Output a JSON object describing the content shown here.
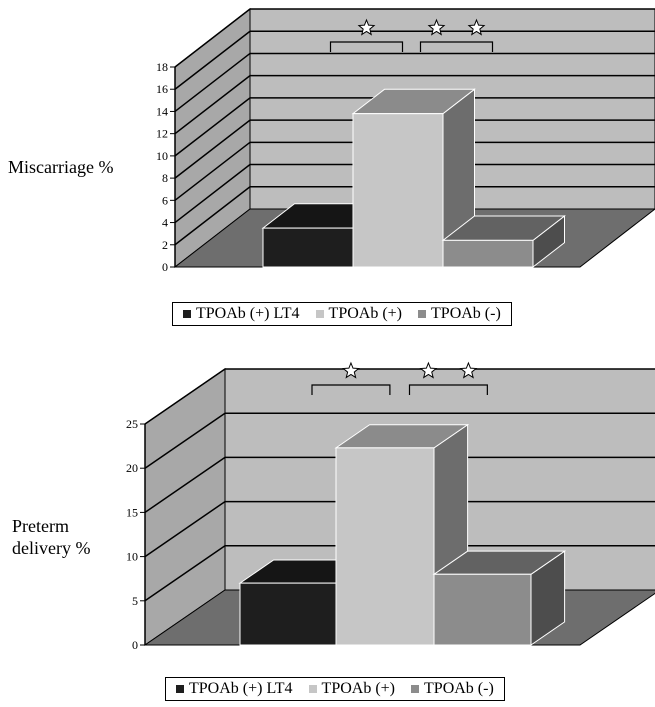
{
  "colors": {
    "series_lt4": "#1e1e1e",
    "series_pos": "#c6c6c6",
    "series_neg": "#8c8c8c",
    "back_wall": "#bdbdbd",
    "side_wall": "#a8a8a8",
    "floor": "#6e6e6e"
  },
  "legend": {
    "lt4": "TPOAb (+) LT4",
    "pos": "TPOAb (+)",
    "neg": "TPOAb (-)"
  },
  "charts": [
    {
      "ylabel_lines": [
        "Miscarriage %"
      ]
    },
    {
      "ylabel_lines": [
        "Preterm",
        "delivery %"
      ]
    }
  ],
  "chart_data": [
    {
      "type": "bar",
      "ylabel": "Miscarriage %",
      "ylim": [
        0,
        18
      ],
      "yticks": [
        0,
        2,
        4,
        6,
        8,
        10,
        12,
        14,
        16,
        18
      ],
      "categories": [
        "TPOAb (+) LT4",
        "TPOAb (+)",
        "TPOAb (-)"
      ],
      "values": [
        3.5,
        13.8,
        2.4
      ],
      "grid": true,
      "significance_marks": [
        {
          "between": [
            0,
            1
          ],
          "symbol": "☆"
        },
        {
          "between": [
            1,
            2
          ],
          "symbol": "☆☆"
        }
      ]
    },
    {
      "type": "bar",
      "ylabel": "Preterm delivery %",
      "ylim": [
        0,
        25
      ],
      "yticks": [
        0,
        5,
        10,
        15,
        20,
        25
      ],
      "categories": [
        "TPOAb (+) LT4",
        "TPOAb (+)",
        "TPOAb (-)"
      ],
      "values": [
        7,
        22.3,
        8
      ],
      "grid": true,
      "significance_marks": [
        {
          "between": [
            0,
            1
          ],
          "symbol": "☆"
        },
        {
          "between": [
            1,
            2
          ],
          "symbol": "☆☆"
        }
      ]
    }
  ]
}
